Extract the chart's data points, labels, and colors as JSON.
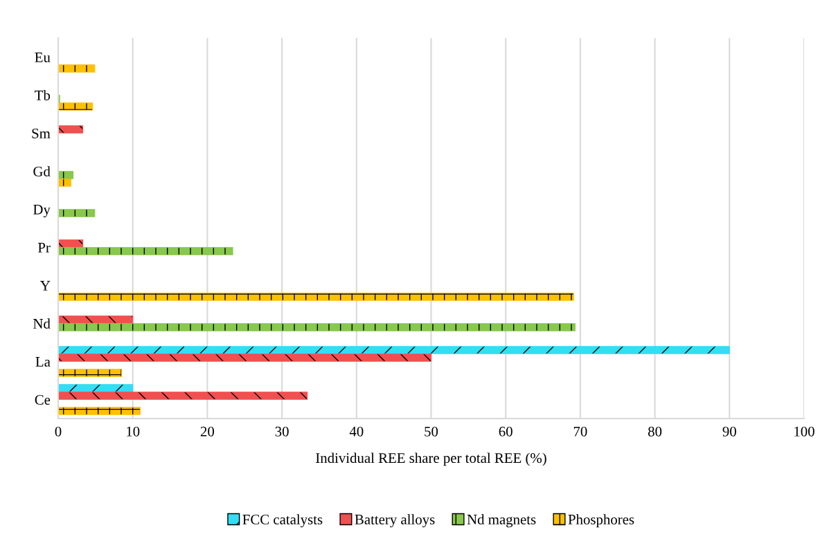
{
  "chart_data": {
    "type": "bar",
    "orientation": "horizontal",
    "categories": [
      "Eu",
      "Tb",
      "Sm",
      "Gd",
      "Dy",
      "Pr",
      "Y",
      "Nd",
      "La",
      "Ce"
    ],
    "series": [
      {
        "name": "FCC catalysts",
        "color": "#33ddf5",
        "values": [
          null,
          null,
          null,
          null,
          null,
          null,
          null,
          null,
          90,
          10
        ]
      },
      {
        "name": "Battery alloys",
        "color": "#f05050",
        "values": [
          null,
          null,
          3.3,
          null,
          null,
          3.3,
          null,
          10,
          50,
          33.4
        ]
      },
      {
        "name": "Nd magnets",
        "color": "#88c84c",
        "values": [
          null,
          0.2,
          null,
          2,
          4.9,
          23.4,
          null,
          69.3,
          null,
          null
        ]
      },
      {
        "name": "Phosphores",
        "color": "#ffc000",
        "values": [
          4.9,
          4.6,
          null,
          1.7,
          null,
          null,
          69.1,
          null,
          8.5,
          11
        ]
      }
    ],
    "xlabel": "Individual REE share per total REE (%)",
    "xlim": [
      0,
      100
    ],
    "xticks": [
      0,
      10,
      20,
      30,
      40,
      50,
      60,
      70,
      80,
      90,
      100
    ],
    "grid": "x",
    "legend": "bottom"
  }
}
